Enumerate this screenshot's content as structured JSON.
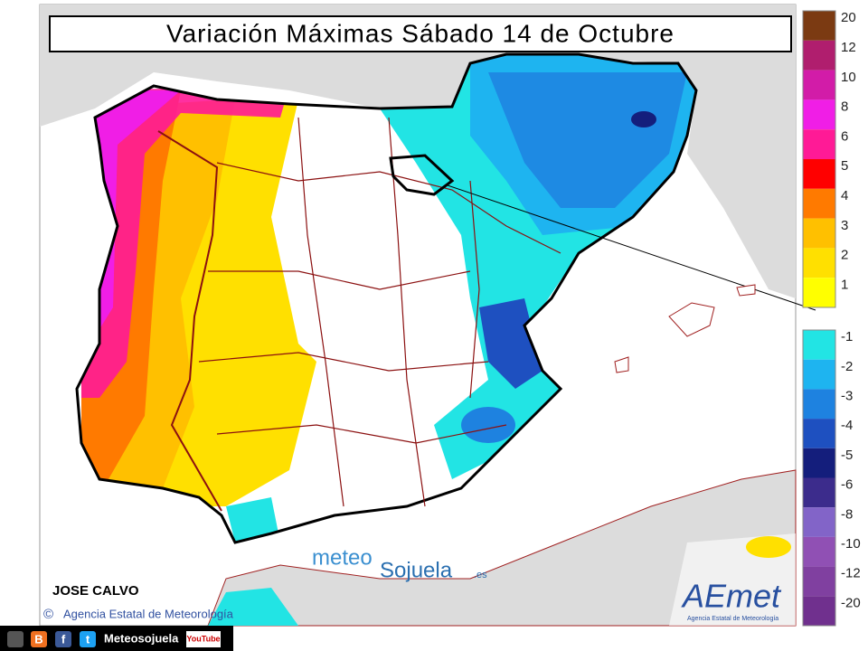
{
  "header": {
    "title": "Variación Máximas Sábado 14 de Octubre"
  },
  "legend": {
    "positive": [
      {
        "value": 20,
        "color": "#7b3a12"
      },
      {
        "value": 12,
        "color": "#b01e6e"
      },
      {
        "value": 10,
        "color": "#d21ca8"
      },
      {
        "value": 8,
        "color": "#f01ee6"
      },
      {
        "value": 6,
        "color": "#ff1a96"
      },
      {
        "value": 5,
        "color": "#ff0000"
      },
      {
        "value": 4,
        "color": "#ff7a00"
      },
      {
        "value": 3,
        "color": "#ffc000"
      },
      {
        "value": 2,
        "color": "#ffe000"
      },
      {
        "value": 1,
        "color": "#ffff00"
      }
    ],
    "negative": [
      {
        "value": -1,
        "color": "#22e4e4"
      },
      {
        "value": -2,
        "color": "#1eb4f0"
      },
      {
        "value": -3,
        "color": "#1e82e0"
      },
      {
        "value": -4,
        "color": "#1e50c0"
      },
      {
        "value": -5,
        "color": "#141e7c"
      },
      {
        "value": -6,
        "color": "#3c2c8c"
      },
      {
        "value": -8,
        "color": "#8264c8"
      },
      {
        "value": -10,
        "color": "#9050b4"
      },
      {
        "value": -12,
        "color": "#8040a0"
      },
      {
        "value": -20,
        "color": "#70308e"
      }
    ]
  },
  "credits": {
    "author": "JOSE CALVO",
    "copyright": "©",
    "agency": "Agencia Estatal de Meteorología"
  },
  "watermark": {
    "meteo": "meteo",
    "sojuela": "Sojuela",
    "tld": ".es"
  },
  "logo": {
    "name": "AEmet",
    "subtitle": "Agencia Estatal de Meteorología"
  },
  "footer": {
    "icons": [
      "B",
      "f",
      "t"
    ],
    "site": "Meteosojuela",
    "youtube": "YouTube"
  }
}
